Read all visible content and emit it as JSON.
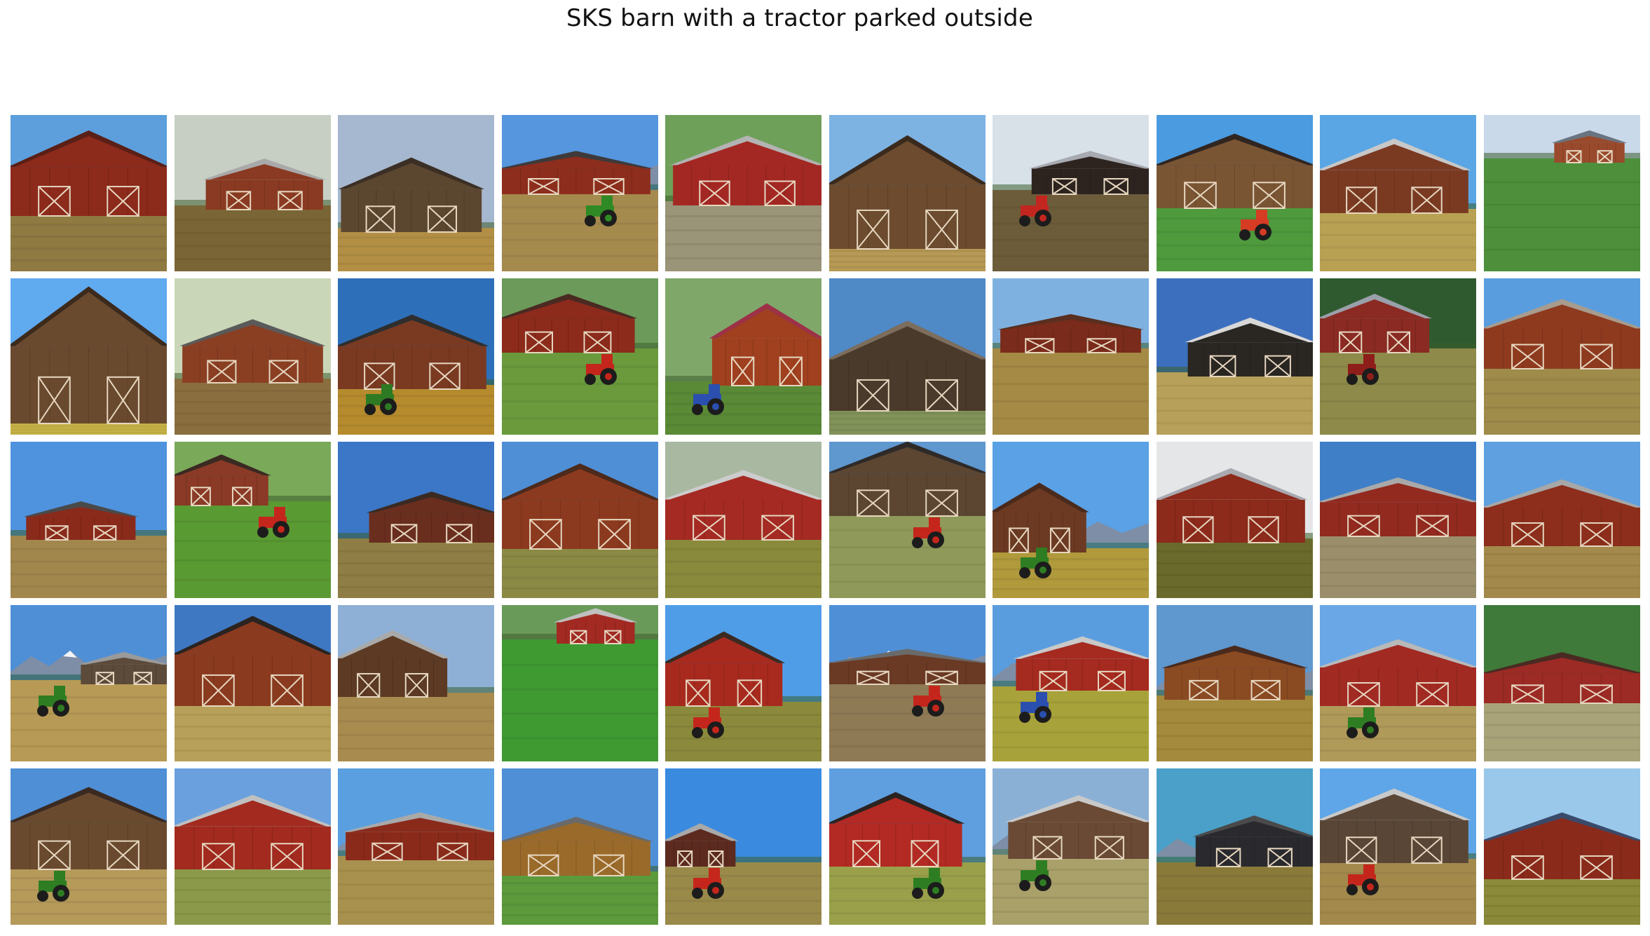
{
  "figure": {
    "title": "SKS barn with a tractor parked outside"
  },
  "grid": {
    "rows": 5,
    "columns": 10,
    "tiles": [
      {
        "sky": "#5c9fdc",
        "ground": "#8f7a42",
        "barn": "#8c2a1b",
        "roof": "#5a1f16",
        "horizon": 0.62,
        "barnX": 0.0,
        "barnW": 1.0,
        "barnH": 0.52,
        "tractor": null,
        "mountains": false
      },
      {
        "sky": "#c7cfc4",
        "ground": "#7a6536",
        "barn": "#8a3a22",
        "roof": "#a9a9a9",
        "horizon": 0.58,
        "barnX": 0.2,
        "barnW": 0.75,
        "barnH": 0.3,
        "tractor": null,
        "mountains": false
      },
      {
        "sky": "#a6b8cf",
        "ground": "#b28f45",
        "barn": "#5b4630",
        "roof": "#3b2f25",
        "horizon": 0.72,
        "barnX": 0.02,
        "barnW": 0.9,
        "barnH": 0.45,
        "tractor": null,
        "mountains": false
      },
      {
        "sky": "#5596de",
        "ground": "#a58a4e",
        "barn": "#8d2d1d",
        "roof": "#3e3a3a",
        "horizon": 0.48,
        "barnX": 0.0,
        "barnW": 0.95,
        "barnH": 0.25,
        "tractor": "#2f8a25",
        "mountains": true
      },
      {
        "sky": "#6fa05a",
        "ground": "#9a9478",
        "barn": "#a32823",
        "roof": "#b3b3b3",
        "horizon": 0.55,
        "barnX": 0.05,
        "barnW": 0.95,
        "barnH": 0.42,
        "tractor": null,
        "mountains": false
      },
      {
        "sky": "#7db3e3",
        "ground": "#b79a55",
        "barn": "#6c4b2e",
        "roof": "#3a2a1d",
        "horizon": 0.83,
        "barnX": 0.0,
        "barnW": 1.0,
        "barnH": 0.7,
        "tractor": null,
        "mountains": true
      },
      {
        "sky": "#d8e1e8",
        "ground": "#6c5c3a",
        "barn": "#2d2420",
        "roof": "#a7aab0",
        "horizon": 0.48,
        "barnX": 0.25,
        "barnW": 0.75,
        "barnH": 0.25,
        "tractor": "#c2261f",
        "mountains": false
      },
      {
        "sky": "#4a9be0",
        "ground": "#4e9a3d",
        "barn": "#7a5534",
        "roof": "#302520",
        "horizon": 0.57,
        "barnX": 0.0,
        "barnW": 1.0,
        "barnH": 0.45,
        "tractor": "#d63b24",
        "mountains": false
      },
      {
        "sky": "#5aa6e4",
        "ground": "#b9a153",
        "barn": "#7a3a22",
        "roof": "#c8c8c8",
        "horizon": 0.6,
        "barnX": 0.0,
        "barnW": 0.95,
        "barnH": 0.45,
        "tractor": null,
        "mountains": false
      },
      {
        "sky": "#c9d9ea",
        "ground": "#4d8f3b",
        "barn": "#9a4a2c",
        "roof": "#6a7480",
        "horizon": 0.28,
        "barnX": 0.45,
        "barnW": 0.45,
        "barnH": 0.18,
        "tractor": null,
        "mountains": false
      },
      {
        "sky": "#60aaf0",
        "ground": "#c9b548",
        "barn": "#6a4a2e",
        "roof": "#3c2a1c",
        "horizon": 0.9,
        "barnX": 0.0,
        "barnW": 1.0,
        "barnH": 0.85,
        "tractor": null,
        "mountains": false
      },
      {
        "sky": "#c9d6b8",
        "ground": "#8a6e3f",
        "barn": "#8a3f23",
        "roof": "#5a5a5a",
        "horizon": 0.64,
        "barnX": 0.05,
        "barnW": 0.9,
        "barnH": 0.38,
        "tractor": null,
        "mountains": false
      },
      {
        "sky": "#2e6fb9",
        "ground": "#b58b2d",
        "barn": "#7a3a22",
        "roof": "#2e2e2e",
        "horizon": 0.68,
        "barnX": 0.0,
        "barnW": 0.95,
        "barnH": 0.45,
        "tractor": "#2d7a23",
        "mountains": false
      },
      {
        "sky": "#6b9a5a",
        "ground": "#6a9a3c",
        "barn": "#8c2a1b",
        "roof": "#4a2a22",
        "horizon": 0.45,
        "barnX": 0.0,
        "barnW": 0.85,
        "barnH": 0.35,
        "tractor": "#c4261c",
        "mountains": false
      },
      {
        "sky": "#7fa76a",
        "ground": "#5a8a36",
        "barn": "#a0401f",
        "roof": "#9c3148",
        "horizon": 0.66,
        "barnX": 0.3,
        "barnW": 0.7,
        "barnH": 0.5,
        "tractor": "#2a4fae",
        "mountains": false
      },
      {
        "sky": "#4f89c6",
        "ground": "#82935a",
        "barn": "#4a3a2b",
        "roof": "#7d6d5c",
        "horizon": 0.82,
        "barnX": 0.0,
        "barnW": 1.0,
        "barnH": 0.55,
        "tractor": null,
        "mountains": false
      },
      {
        "sky": "#7fb1e0",
        "ground": "#a48a45",
        "barn": "#7a2b1b",
        "roof": "#5a2f20",
        "horizon": 0.45,
        "barnX": 0.05,
        "barnW": 0.9,
        "barnH": 0.22,
        "tractor": null,
        "mountains": false
      },
      {
        "sky": "#3c6fbe",
        "ground": "#b7a15a",
        "barn": "#2a2622",
        "roof": "#d8d8d8",
        "horizon": 0.6,
        "barnX": 0.2,
        "barnW": 0.8,
        "barnH": 0.35,
        "tractor": null,
        "mountains": false
      },
      {
        "sky": "#2f5a2f",
        "ground": "#8d8a4a",
        "barn": "#8a2a23",
        "roof": "#9aa0aa",
        "horizon": 0.45,
        "barnX": 0.0,
        "barnW": 0.7,
        "barnH": 0.35,
        "tractor": "#8e1e1a",
        "mountains": false
      },
      {
        "sky": "#5a9ddf",
        "ground": "#9f8b4a",
        "barn": "#8e3a1f",
        "roof": "#a79c8e",
        "horizon": 0.55,
        "barnX": 0.0,
        "barnW": 1.0,
        "barnH": 0.42,
        "tractor": null,
        "mountains": false
      },
      {
        "sky": "#4f93de",
        "ground": "#a2874d",
        "barn": "#8a2a1b",
        "roof": "#4a4a4a",
        "horizon": 0.6,
        "barnX": 0.1,
        "barnW": 0.7,
        "barnH": 0.22,
        "tractor": null,
        "mountains": false
      },
      {
        "sky": "#7aa95a",
        "ground": "#5a9a32",
        "barn": "#8a3a26",
        "roof": "#3a2a22",
        "horizon": 0.38,
        "barnX": 0.0,
        "barnW": 0.6,
        "barnH": 0.3,
        "tractor": "#c4261c",
        "mountains": false
      },
      {
        "sky": "#3b77c6",
        "ground": "#8e7e45",
        "barn": "#6a2e1e",
        "roof": "#3a2a22",
        "horizon": 0.62,
        "barnX": 0.2,
        "barnW": 0.8,
        "barnH": 0.3,
        "tractor": null,
        "mountains": false
      },
      {
        "sky": "#4f8fd6",
        "ground": "#8a8a44",
        "barn": "#8c3a1f",
        "roof": "#4c2a1c",
        "horizon": 0.66,
        "barnX": 0.0,
        "barnW": 1.0,
        "barnH": 0.52,
        "tractor": null,
        "mountains": false
      },
      {
        "sky": "#a9b8a0",
        "ground": "#8a8a3c",
        "barn": "#a52a23",
        "roof": "#cccccc",
        "horizon": 0.6,
        "barnX": 0.0,
        "barnW": 1.0,
        "barnH": 0.42,
        "tractor": null,
        "mountains": false
      },
      {
        "sky": "#5f97cf",
        "ground": "#8f9a5a",
        "barn": "#5c4632",
        "roof": "#2e2a28",
        "horizon": 0.45,
        "barnX": 0.0,
        "barnW": 1.0,
        "barnH": 0.45,
        "tractor": "#c4261c",
        "mountains": false
      },
      {
        "sky": "#5aa1e6",
        "ground": "#b09a3c",
        "barn": "#6c3a23",
        "roof": "#4a2a1c",
        "horizon": 0.68,
        "barnX": 0.0,
        "barnW": 0.6,
        "barnH": 0.42,
        "tractor": "#2e7d22",
        "mountains": true
      },
      {
        "sky": "#e4e6e8",
        "ground": "#6a6a2c",
        "barn": "#8c2a1b",
        "roof": "#a9aab0",
        "horizon": 0.62,
        "barnX": 0.0,
        "barnW": 0.95,
        "barnH": 0.45,
        "tractor": null,
        "mountains": false
      },
      {
        "sky": "#3f7fc8",
        "ground": "#9a8f6a",
        "barn": "#922a1f",
        "roof": "#a9a9a9",
        "horizon": 0.58,
        "barnX": 0.0,
        "barnW": 1.0,
        "barnH": 0.35,
        "tractor": null,
        "mountains": false
      },
      {
        "sky": "#5fa0e0",
        "ground": "#a38a4c",
        "barn": "#8c2e1b",
        "roof": "#a7a7a7",
        "horizon": 0.64,
        "barnX": 0.0,
        "barnW": 1.0,
        "barnH": 0.4,
        "tractor": null,
        "mountains": false
      },
      {
        "sky": "#4f8fd6",
        "ground": "#b79a55",
        "barn": "#5c4a3a",
        "roof": "#9a9a9a",
        "horizon": 0.48,
        "barnX": 0.45,
        "barnW": 0.55,
        "barnH": 0.18,
        "tractor": "#2e7d22",
        "mountains": true
      },
      {
        "sky": "#3f78c2",
        "ground": "#b7a15a",
        "barn": "#8a3a1f",
        "roof": "#2a2320",
        "horizon": 0.62,
        "barnX": 0.0,
        "barnW": 1.0,
        "barnH": 0.55,
        "tractor": null,
        "mountains": false
      },
      {
        "sky": "#8fb0d6",
        "ground": "#a88b4f",
        "barn": "#5c3a24",
        "roof": "#a9a9a9",
        "horizon": 0.56,
        "barnX": 0.0,
        "barnW": 0.7,
        "barnH": 0.4,
        "tractor": null,
        "mountains": false
      },
      {
        "sky": "#6a9a5a",
        "ground": "#3f9a32",
        "barn": "#a22a23",
        "roof": "#c0c0c0",
        "horizon": 0.22,
        "barnX": 0.35,
        "barnW": 0.5,
        "barnH": 0.2,
        "tractor": null,
        "mountains": false
      },
      {
        "sky": "#4f9de6",
        "ground": "#8b8a3c",
        "barn": "#a82a1f",
        "roof": "#3a2a22",
        "horizon": 0.62,
        "barnX": 0.0,
        "barnW": 0.75,
        "barnH": 0.45,
        "tractor": "#c4261c",
        "mountains": false
      },
      {
        "sky": "#4f8fd6",
        "ground": "#8e7a55",
        "barn": "#6a3a24",
        "roof": "#6a6a6a",
        "horizon": 0.48,
        "barnX": 0.0,
        "barnW": 1.0,
        "barnH": 0.2,
        "tractor": "#c4261c",
        "mountains": true
      },
      {
        "sky": "#5a9ddf",
        "ground": "#a8a23a",
        "barn": "#a52a1f",
        "roof": "#c9c9c9",
        "horizon": 0.52,
        "barnX": 0.15,
        "barnW": 0.85,
        "barnH": 0.32,
        "tractor": "#2a4fae",
        "mountains": true
      },
      {
        "sky": "#5f97cf",
        "ground": "#a48a3c",
        "barn": "#8a4a22",
        "roof": "#4a2a1c",
        "horizon": 0.58,
        "barnX": 0.05,
        "barnW": 0.9,
        "barnH": 0.32,
        "tractor": null,
        "mountains": true
      },
      {
        "sky": "#6aa7e6",
        "ground": "#b09a5a",
        "barn": "#a12a23",
        "roof": "#b9b9b9",
        "horizon": 0.62,
        "barnX": 0.0,
        "barnW": 1.0,
        "barnH": 0.4,
        "tractor": "#2e7d22",
        "mountains": false
      },
      {
        "sky": "#3f7a3a",
        "ground": "#a9a37a",
        "barn": "#9c2a25",
        "roof": "#4a2a22",
        "horizon": 0.6,
        "barnX": 0.0,
        "barnW": 1.0,
        "barnH": 0.3,
        "tractor": null,
        "mountains": false
      },
      {
        "sky": "#4f8fd6",
        "ground": "#b59a5a",
        "barn": "#6a4a2e",
        "roof": "#3a2a22",
        "horizon": 0.62,
        "barnX": 0.0,
        "barnW": 1.0,
        "barnH": 0.5,
        "tractor": "#2e7d22",
        "mountains": false
      },
      {
        "sky": "#6aa0de",
        "ground": "#8a9a4a",
        "barn": "#a22a1f",
        "roof": "#c0c0c0",
        "horizon": 0.62,
        "barnX": 0.0,
        "barnW": 1.0,
        "barnH": 0.45,
        "tractor": null,
        "mountains": true
      },
      {
        "sky": "#5a9fe0",
        "ground": "#a8914e",
        "barn": "#8a2a1b",
        "roof": "#a9a9a9",
        "horizon": 0.56,
        "barnX": 0.05,
        "barnW": 0.95,
        "barnH": 0.28,
        "tractor": null,
        "mountains": true
      },
      {
        "sky": "#4f8fd6",
        "ground": "#5c9a3c",
        "barn": "#9a6a2a",
        "roof": "#6a6a6a",
        "horizon": 0.66,
        "barnX": 0.0,
        "barnW": 0.95,
        "barnH": 0.35,
        "tractor": null,
        "mountains": false
      },
      {
        "sky": "#3a8be0",
        "ground": "#9a8a4a",
        "barn": "#5c2a1f",
        "roof": "#a9a9a9",
        "horizon": 0.6,
        "barnX": 0.0,
        "barnW": 0.45,
        "barnH": 0.25,
        "tractor": "#c4261c",
        "mountains": false
      },
      {
        "sky": "#5f9fe0",
        "ground": "#9aa04a",
        "barn": "#b22a23",
        "roof": "#2a2320",
        "horizon": 0.6,
        "barnX": 0.0,
        "barnW": 0.85,
        "barnH": 0.45,
        "tractor": "#2e7d22",
        "mountains": false
      },
      {
        "sky": "#8ab0d6",
        "ground": "#a9a06a",
        "barn": "#6a4a34",
        "roof": "#c9c9c9",
        "horizon": 0.55,
        "barnX": 0.1,
        "barnW": 0.9,
        "barnH": 0.38,
        "tractor": "#2e7d22",
        "mountains": true
      },
      {
        "sky": "#4aa0c8",
        "ground": "#8a7a3a",
        "barn": "#2a2a2e",
        "roof": "#4a4a4a",
        "horizon": 0.6,
        "barnX": 0.25,
        "barnW": 0.75,
        "barnH": 0.3,
        "tractor": null,
        "mountains": true
      },
      {
        "sky": "#5ea6e8",
        "ground": "#a38a4c",
        "barn": "#5a4636",
        "roof": "#c9c9c9",
        "horizon": 0.58,
        "barnX": 0.0,
        "barnW": 0.95,
        "barnH": 0.45,
        "tractor": "#c4261c",
        "mountains": false
      },
      {
        "sky": "#9ac8ea",
        "ground": "#8a8a3a",
        "barn": "#8a2a1b",
        "roof": "#3a4a6a",
        "horizon": 0.68,
        "barnX": 0.0,
        "barnW": 1.0,
        "barnH": 0.4,
        "tractor": null,
        "mountains": false
      }
    ]
  }
}
